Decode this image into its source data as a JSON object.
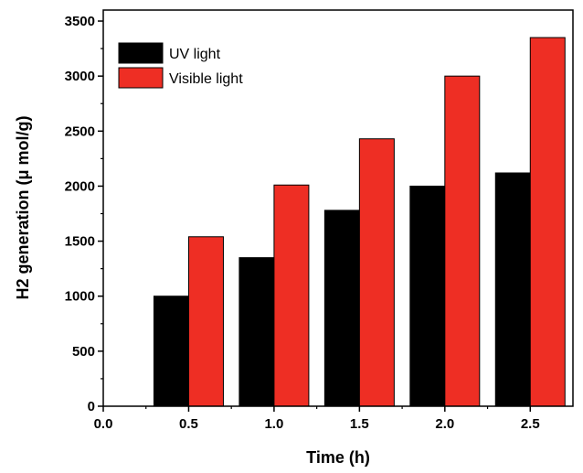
{
  "chart_data": {
    "type": "bar",
    "xlabel": "Time (h)",
    "ylabel": "H2 generation (μ mol/g)",
    "x_ticks": [
      "0.0",
      "0.5",
      "1.0",
      "1.5",
      "2.0",
      "2.5"
    ],
    "x_tick_values": [
      0.0,
      0.5,
      1.0,
      1.5,
      2.0,
      2.5
    ],
    "y_ticks": [
      "0",
      "500",
      "1000",
      "1500",
      "2000",
      "2500",
      "3000",
      "3500"
    ],
    "y_tick_values": [
      0,
      500,
      1000,
      1500,
      2000,
      2500,
      3000,
      3500
    ],
    "xlim": [
      0.0,
      2.75
    ],
    "ylim": [
      0,
      3600
    ],
    "x": [
      0.5,
      1.0,
      1.5,
      2.0,
      2.5
    ],
    "series": [
      {
        "name": "UV light",
        "color": "#000000",
        "values": [
          1000,
          1350,
          1780,
          2000,
          2120
        ]
      },
      {
        "name": "Visible light",
        "color": "#ee2e24",
        "values": [
          1540,
          2010,
          2430,
          3000,
          3350
        ]
      }
    ],
    "grid": false,
    "legend_position": "top-left"
  }
}
